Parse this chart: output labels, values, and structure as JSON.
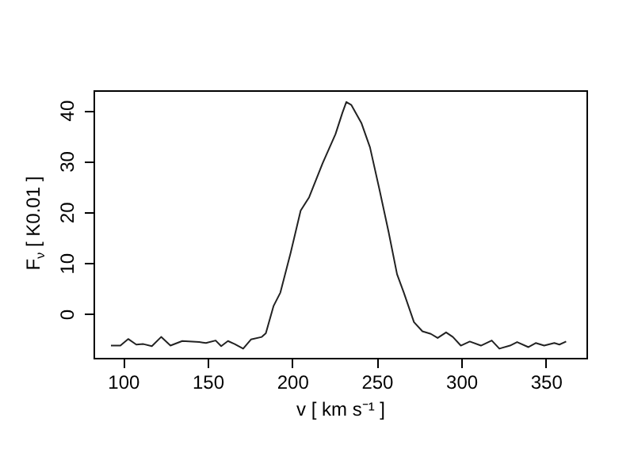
{
  "chart_data": {
    "type": "line",
    "xlabel": "v [ km s⁻¹ ]",
    "ylabel": "F$_{ν}$ [ K0.01 ]",
    "x": [
      92.8,
      98.4,
      103,
      107.8,
      112,
      117,
      122.5,
      128,
      135,
      145,
      149,
      154.7,
      158,
      162,
      166,
      171,
      175.6,
      182,
      184.4,
      189,
      193,
      199,
      205,
      210,
      218,
      225.6,
      229.7,
      232,
      235,
      241,
      246,
      251.6,
      257,
      262,
      266,
      272,
      277,
      282,
      286,
      291,
      295,
      299.7,
      305,
      311.6,
      318,
      322.5,
      328.8,
      333,
      339.7,
      344,
      349,
      355,
      358,
      362
    ],
    "series": [
      {
        "color": "#222222",
        "values": [
          -6.2,
          -6.2,
          -4.9,
          -6.0,
          -5.9,
          -6.3,
          -4.5,
          -6.2,
          -5.3,
          -5.5,
          -5.7,
          -5.2,
          -6.3,
          -5.3,
          -5.9,
          -6.8,
          -5.0,
          -4.5,
          -3.8,
          1.6,
          4.2,
          11.9,
          20.3,
          22.9,
          29.6,
          35.3,
          39.5,
          41.6,
          41.0,
          37.4,
          32.7,
          24.4,
          16.1,
          7.8,
          4.2,
          -1.6,
          -3.4,
          -3.9,
          -4.7,
          -3.6,
          -4.5,
          -6.2,
          -5.4,
          -6.2,
          -5.2,
          -6.8,
          -6.2,
          -5.5,
          -6.5,
          -5.7,
          -6.2,
          -5.7,
          -6.0,
          -5.4
        ]
      }
    ],
    "xlim": [
      82.5,
      374
    ],
    "ylim": [
      -8.6,
      43.9
    ],
    "xticks": [
      100,
      150,
      200,
      250,
      300,
      350
    ],
    "yticks": [
      0,
      10,
      20,
      30,
      40
    ],
    "grid": false,
    "marker": "none",
    "line_style": "solid"
  }
}
